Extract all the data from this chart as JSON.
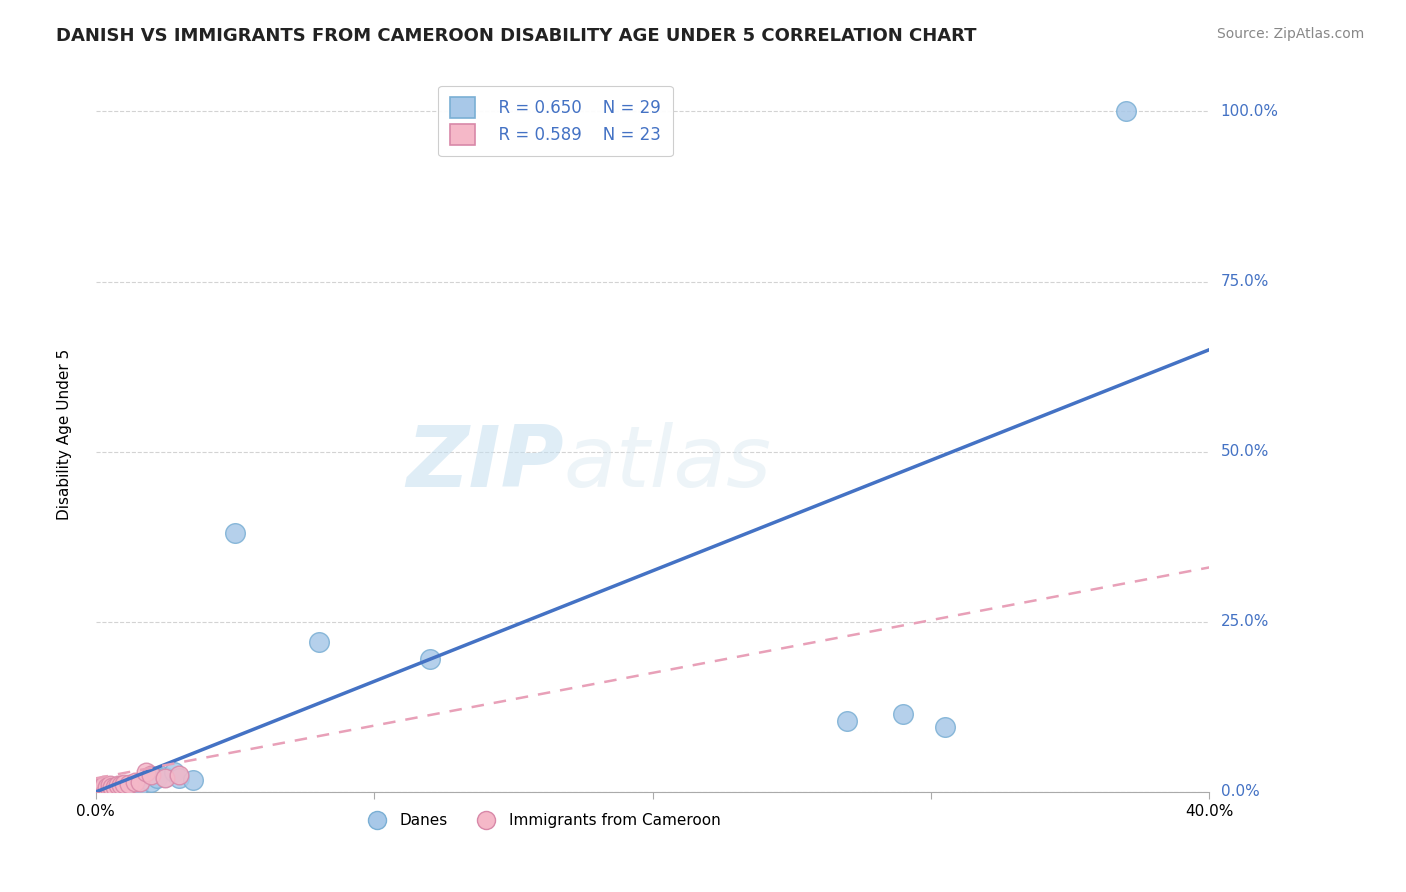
{
  "title": "DANISH VS IMMIGRANTS FROM CAMEROON DISABILITY AGE UNDER 5 CORRELATION CHART",
  "source": "Source: ZipAtlas.com",
  "ylabel": "Disability Age Under 5",
  "xlim": [
    0.0,
    0.4
  ],
  "ylim": [
    0.0,
    1.05
  ],
  "ytick_labels": [
    "0.0%",
    "25.0%",
    "50.0%",
    "75.0%",
    "100.0%"
  ],
  "ytick_vals": [
    0.0,
    0.25,
    0.5,
    0.75,
    1.0
  ],
  "xtick_vals": [
    0.0,
    0.1,
    0.2,
    0.3,
    0.4
  ],
  "xtick_labels": [
    "0.0%",
    "",
    "",
    "",
    "40.0%"
  ],
  "legend_r_danes": "R = 0.650",
  "legend_n_danes": "N = 29",
  "legend_r_cam": "R = 0.589",
  "legend_n_cam": "N = 23",
  "danes_color": "#a8c8e8",
  "cam_color": "#f5b8c8",
  "danes_line_color": "#4472c4",
  "cam_line_color": "#e8a0b8",
  "danes_line_x0": 0.0,
  "danes_line_y0": 0.0,
  "danes_line_x1": 0.4,
  "danes_line_y1": 0.65,
  "cam_line_x0": 0.0,
  "cam_line_y0": 0.02,
  "cam_line_x1": 0.4,
  "cam_line_y1": 0.33,
  "danes_scatter_x": [
    0.001,
    0.002,
    0.002,
    0.003,
    0.003,
    0.004,
    0.004,
    0.005,
    0.005,
    0.006,
    0.007,
    0.008,
    0.009,
    0.01,
    0.012,
    0.015,
    0.02,
    0.022,
    0.025,
    0.028,
    0.03,
    0.035,
    0.05,
    0.08,
    0.12,
    0.27,
    0.29,
    0.305,
    0.37
  ],
  "danes_scatter_y": [
    0.005,
    0.003,
    0.005,
    0.002,
    0.004,
    0.003,
    0.006,
    0.003,
    0.005,
    0.004,
    0.003,
    0.005,
    0.004,
    0.005,
    0.008,
    0.008,
    0.015,
    0.02,
    0.022,
    0.03,
    0.02,
    0.018,
    0.38,
    0.22,
    0.195,
    0.105,
    0.115,
    0.095,
    1.0
  ],
  "cam_scatter_x": [
    0.001,
    0.001,
    0.002,
    0.002,
    0.003,
    0.003,
    0.003,
    0.004,
    0.004,
    0.005,
    0.005,
    0.006,
    0.007,
    0.008,
    0.009,
    0.01,
    0.012,
    0.014,
    0.016,
    0.018,
    0.02,
    0.025,
    0.03
  ],
  "cam_scatter_y": [
    0.005,
    0.008,
    0.005,
    0.008,
    0.005,
    0.007,
    0.01,
    0.005,
    0.008,
    0.005,
    0.01,
    0.008,
    0.008,
    0.01,
    0.01,
    0.012,
    0.012,
    0.015,
    0.015,
    0.03,
    0.025,
    0.02,
    0.025
  ],
  "title_fontsize": 13,
  "axis_label_fontsize": 11,
  "tick_fontsize": 11,
  "legend_fontsize": 12,
  "source_fontsize": 10
}
